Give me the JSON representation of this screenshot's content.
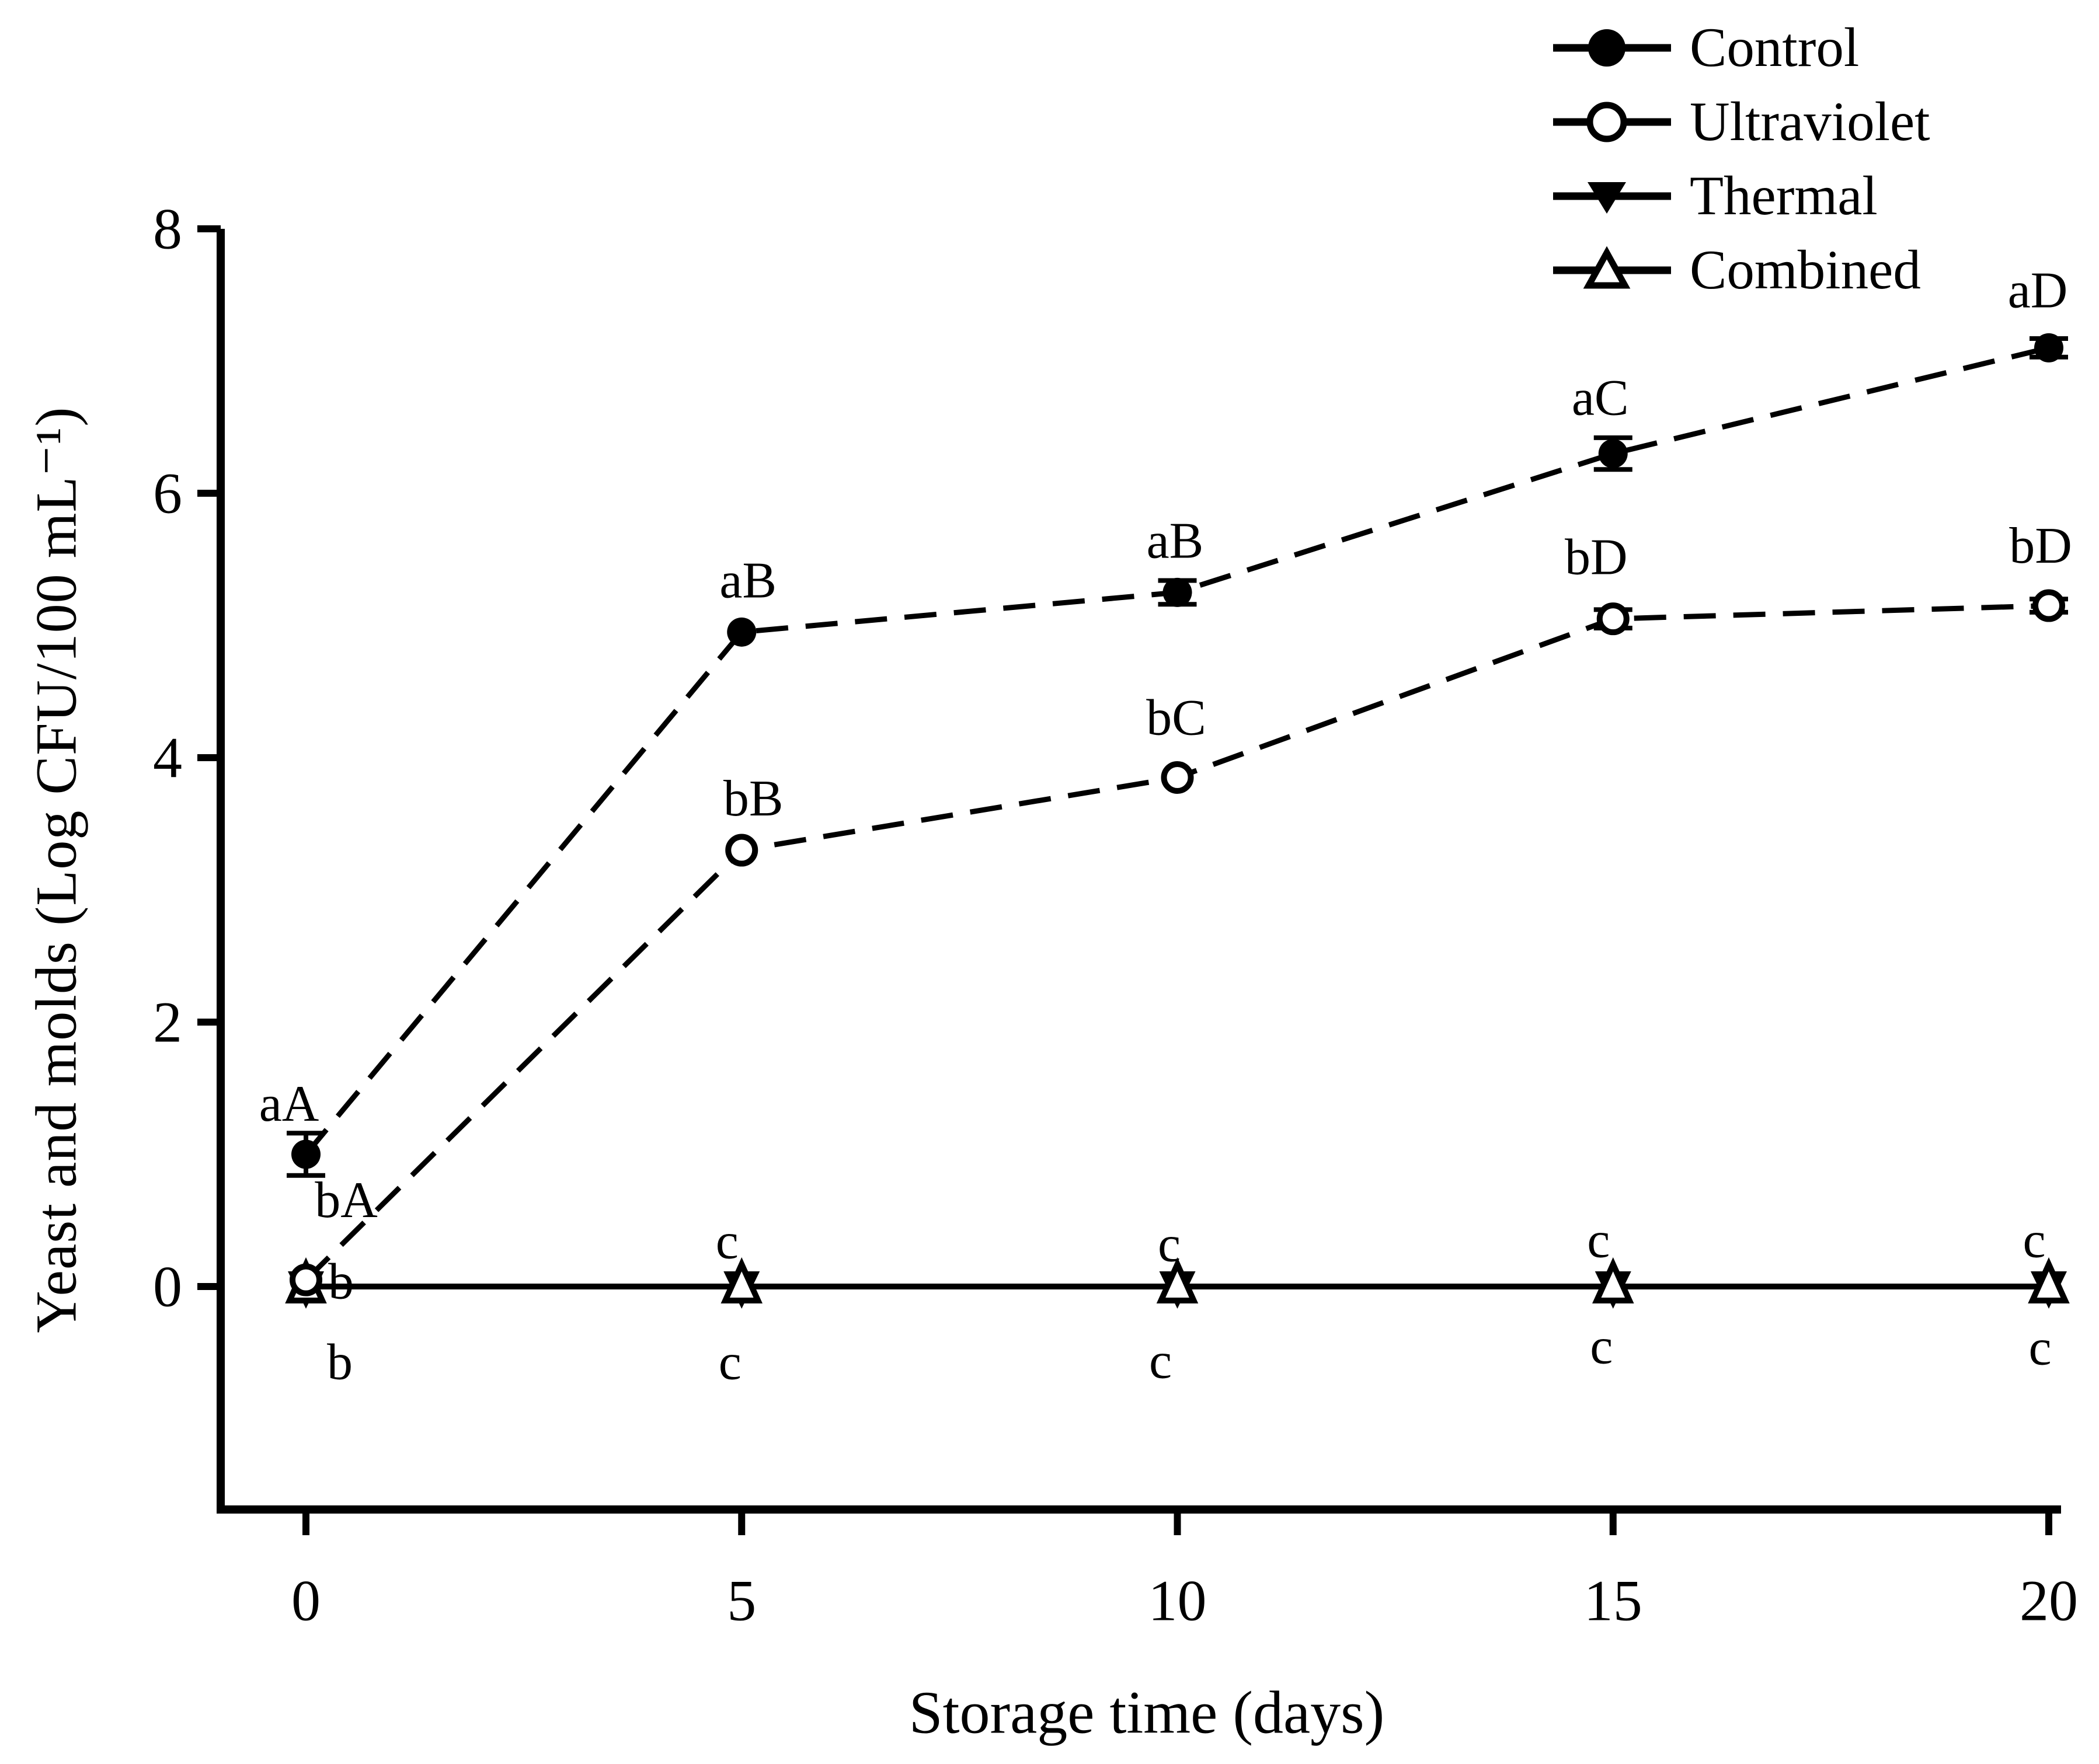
{
  "figure": {
    "background": "#ffffff",
    "ink_color": "#000000"
  },
  "chart_data": {
    "type": "line",
    "title": "",
    "xlabel": "Storage time (days)",
    "ylabel": "Yeast and molds (Log CFU/100 mL⁻¹)",
    "x": [
      0,
      5,
      10,
      15,
      20
    ],
    "x_ticks": [
      "0",
      "5",
      "10",
      "15",
      "20"
    ],
    "y_ticks": [
      "0",
      "2",
      "4",
      "6",
      "8"
    ],
    "y_tick_values": [
      0,
      2,
      4,
      6,
      8
    ],
    "xlim": [
      -1,
      20.2
    ],
    "ylim": [
      -1.7,
      8
    ],
    "grid": false,
    "legend_position": "top-right",
    "series": [
      {
        "name": "Control",
        "marker": "filled-circle",
        "line_style": "dashed",
        "values": [
          1.0,
          4.95,
          5.25,
          6.3,
          7.1
        ],
        "errors": [
          0.16,
          0,
          0.09,
          0.12,
          0.07
        ],
        "point_labels": [
          "aA",
          "aB",
          "aB",
          "aC",
          "aD"
        ],
        "label_offsets": [
          [
            -29,
            -86
          ],
          [
            11,
            -88
          ],
          [
            -4,
            -88
          ],
          [
            -22,
            -95
          ],
          [
            -19,
            -98
          ]
        ]
      },
      {
        "name": "Ultraviolet",
        "marker": "open-circle",
        "line_style": "dashed",
        "values": [
          0.05,
          3.3,
          3.85,
          5.05,
          5.15
        ],
        "errors": [
          0,
          0,
          0,
          0.07,
          0.05
        ],
        "point_labels": [
          "bA",
          "bB",
          "bC",
          "bD",
          "bD"
        ],
        "label_offsets": [
          [
            69,
            -136
          ],
          [
            20,
            -88
          ],
          [
            -2,
            -102
          ],
          [
            -29,
            -105
          ],
          [
            -14,
            -102
          ]
        ]
      },
      {
        "name": "Thermal",
        "marker": "filled-triangle-down",
        "line_style": "solid",
        "values": [
          0,
          0,
          0,
          0,
          0
        ],
        "errors": [
          0,
          0,
          0,
          0,
          0
        ],
        "point_labels": [
          "b",
          "c",
          "c",
          "c",
          "c"
        ],
        "label_offsets": [
          [
            60,
            -8
          ],
          [
            -25,
            -77
          ],
          [
            -14,
            -72
          ],
          [
            -25,
            -79
          ],
          [
            -25,
            -79
          ]
        ]
      },
      {
        "name": "Combined",
        "marker": "open-triangle-up",
        "line_style": "solid",
        "values": [
          0,
          0,
          0,
          0,
          0
        ],
        "errors": [
          0,
          0,
          0,
          0,
          0
        ],
        "point_labels": [
          "b",
          "c",
          "c",
          "c",
          "c"
        ],
        "label_offsets": [
          [
            58,
            130
          ],
          [
            -20,
            130
          ],
          [
            -29,
            128
          ],
          [
            -20,
            103
          ],
          [
            -15,
            105
          ]
        ]
      }
    ]
  },
  "legend": {
    "items": [
      {
        "label": "Control",
        "marker": "filled-circle"
      },
      {
        "label": "Ultraviolet",
        "marker": "open-circle"
      },
      {
        "label": "Thermal",
        "marker": "filled-triangle-down"
      },
      {
        "label": "Combined",
        "marker": "open-triangle-up"
      }
    ]
  }
}
